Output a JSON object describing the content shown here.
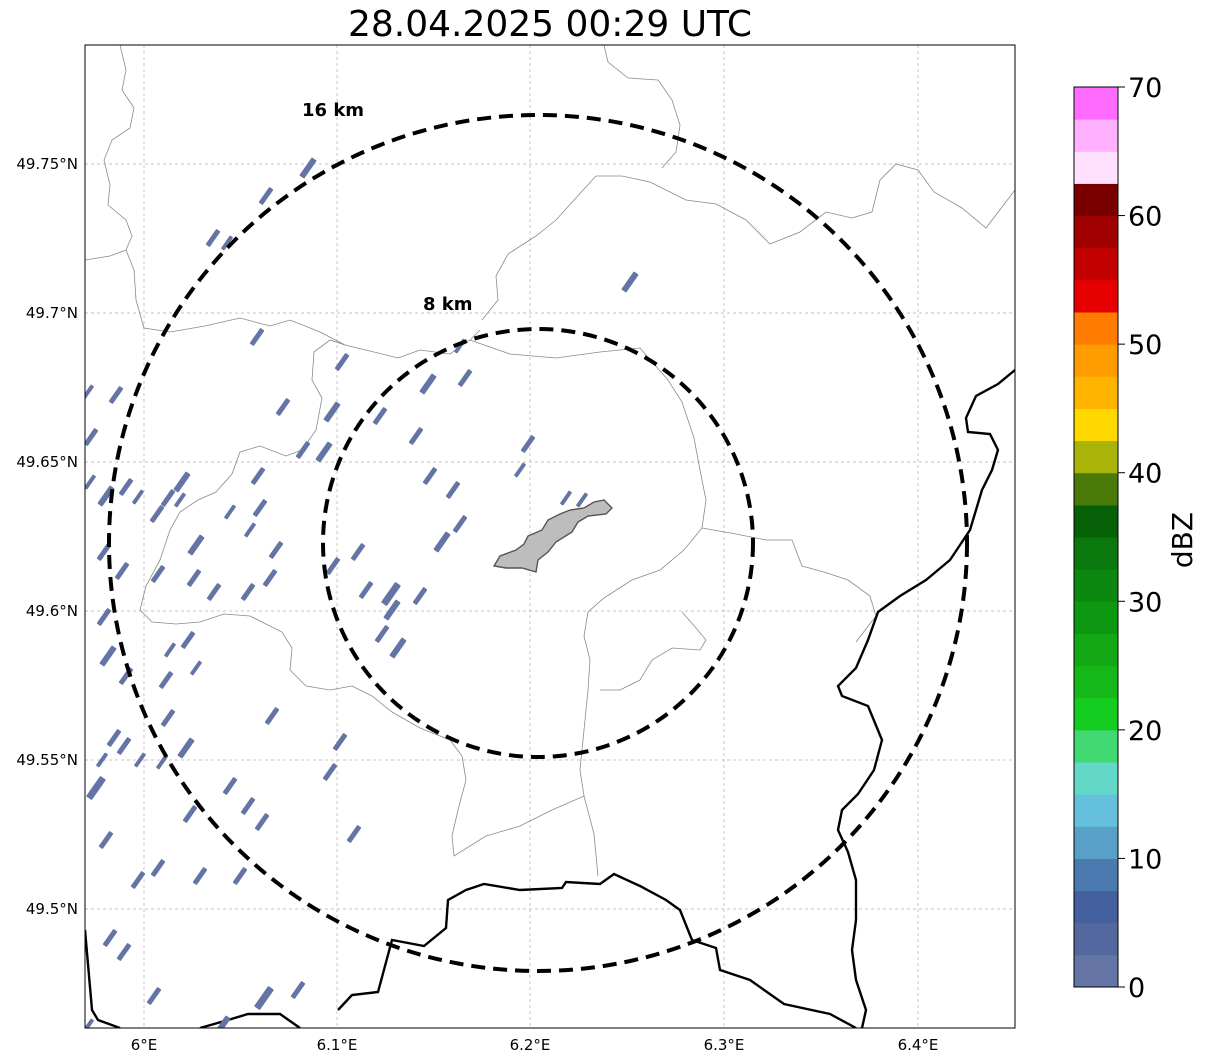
{
  "map": {
    "title": "28.04.2025 00:29 UTC",
    "lat_ticks": [
      "49.75°N",
      "49.7°N",
      "49.65°N",
      "49.6°N",
      "49.55°N",
      "49.5°N"
    ],
    "lon_ticks": [
      "6°E",
      "6.1°E",
      "6.2°E",
      "6.3°E",
      "6.4°E"
    ],
    "rings": [
      {
        "label": "16 km",
        "radius_km": 16
      },
      {
        "label": "8 km",
        "radius_km": 8
      }
    ],
    "gridlines": true,
    "echo_color": "#6474a4",
    "highlight_area_color": "#bdbdbd"
  },
  "colorbar": {
    "label": "dBZ",
    "ticks": [
      "0",
      "10",
      "20",
      "30",
      "40",
      "50",
      "60",
      "70"
    ],
    "range": [
      0,
      70
    ],
    "step": 2.5,
    "colors": [
      "#6474a4",
      "#5468a0",
      "#44609f",
      "#4a7ab0",
      "#58a0c8",
      "#64c0dc",
      "#64d8c8",
      "#40d870",
      "#14cc20",
      "#14b818",
      "#14a814",
      "#0c9810",
      "#0c8810",
      "#0a780c",
      "#066008",
      "#4a7a08",
      "#aab408",
      "#ffd800",
      "#ffb400",
      "#ff9c00",
      "#ff7c00",
      "#e60000",
      "#c20000",
      "#a00000",
      "#7a0000",
      "#ffe0ff",
      "#ffb0ff",
      "#ff6cff",
      "#f032f0"
    ]
  }
}
